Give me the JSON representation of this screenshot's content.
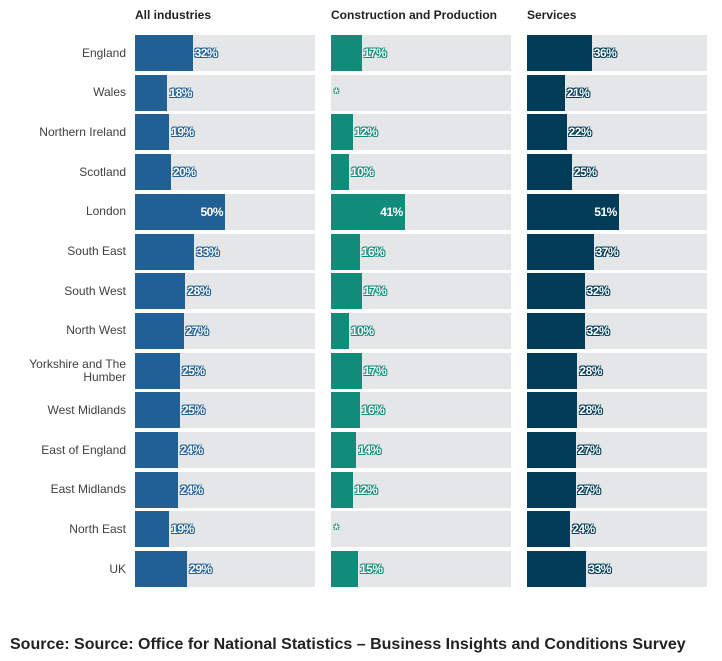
{
  "chart_data": {
    "type": "bar",
    "orientation": "horizontal",
    "categories": [
      "England",
      "Wales",
      "Northern Ireland",
      "Scotland",
      "London",
      "South East",
      "South West",
      "North West",
      "Yorkshire and The Humber",
      "West Midlands",
      "East of England",
      "East Midlands",
      "North East",
      "UK"
    ],
    "xlim": [
      0,
      100
    ],
    "series": [
      {
        "name": "All industries",
        "color": "#206095",
        "values": [
          32,
          18,
          19,
          20,
          50,
          33,
          28,
          27,
          25,
          25,
          24,
          24,
          19,
          29
        ]
      },
      {
        "name": "Construction and Production",
        "color": "#118c7b",
        "values": [
          17,
          null,
          12,
          10,
          41,
          16,
          17,
          10,
          17,
          16,
          14,
          12,
          null,
          15
        ]
      },
      {
        "name": "Services",
        "color": "#003c57",
        "values": [
          36,
          21,
          22,
          25,
          51,
          37,
          32,
          32,
          28,
          28,
          27,
          27,
          24,
          33
        ]
      }
    ],
    "suppressed_marker": "*",
    "grid": false
  },
  "source": "Source: Source: Office for National Statistics – Business Insights and Conditions Survey"
}
